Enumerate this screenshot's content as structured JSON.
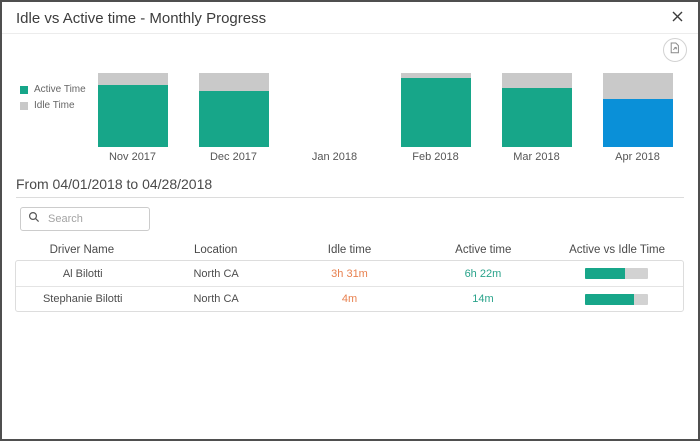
{
  "modal": {
    "title": "Idle vs Active time - Monthly Progress"
  },
  "chart_data": {
    "type": "bar",
    "subtype": "stacked-percent-column",
    "title": "Idle vs Active time - Monthly Progress",
    "categories": [
      "Nov 2017",
      "Dec 2017",
      "Jan 2018",
      "Feb 2018",
      "Mar 2018",
      "Apr 2018"
    ],
    "series": [
      {
        "name": "Active Time",
        "values": [
          84,
          76,
          null,
          93,
          80,
          65
        ]
      },
      {
        "name": "Idle Time",
        "values": [
          16,
          24,
          null,
          7,
          20,
          35
        ]
      }
    ],
    "selected_index": 5,
    "legend_position": "left",
    "grid": false,
    "ylim": [
      0,
      100
    ],
    "colors": {
      "active": "#17a689",
      "idle": "#c9c9c9",
      "selected_active": "#0a90d8"
    }
  },
  "period": {
    "label": "From 04/01/2018 to 04/28/2018"
  },
  "search": {
    "placeholder": "Search"
  },
  "table": {
    "columns": [
      "Driver Name",
      "Location",
      "Idle time",
      "Active time",
      "Active vs Idle Time"
    ],
    "rows": [
      {
        "driver": "Al Bilotti",
        "location": "North CA",
        "idle_time": "3h 31m",
        "active_time": "6h 22m",
        "active_pct": 64
      },
      {
        "driver": "Stephanie Bilotti",
        "location": "North CA",
        "idle_time": "4m",
        "active_time": "14m",
        "active_pct": 78
      }
    ],
    "value_colors": {
      "idle": "#e8814f",
      "active": "#2aa38b"
    }
  }
}
